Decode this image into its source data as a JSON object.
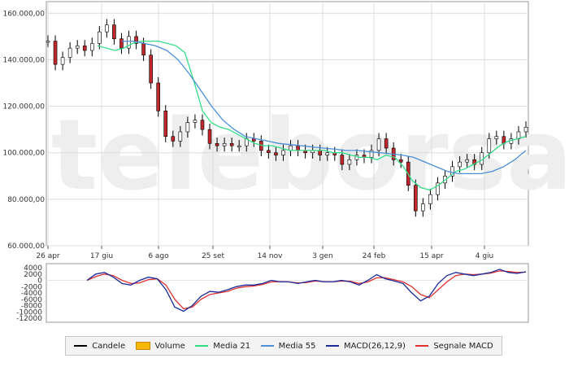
{
  "chart_data": [
    {
      "type": "candlestick-line",
      "watermark": "teleborsa",
      "x_ticks": [
        "26 apr",
        "17 giu",
        "6 ago",
        "25 set",
        "14 nov",
        "3 gen",
        "24 feb",
        "15 apr",
        "4 giu"
      ],
      "y_ticks": [
        "160.000,00",
        "140.000,00",
        "120.000,00",
        "100.000,00",
        "80.000,00",
        "60.000,00"
      ],
      "y_tick_values": [
        160000,
        140000,
        120000,
        100000,
        80000,
        60000
      ],
      "ylim": [
        60000,
        165000
      ],
      "grid": true,
      "series": [
        {
          "name": "Candele",
          "values": [
            148000,
            138000,
            141000,
            145000,
            146000,
            144000,
            147000,
            152000,
            155000,
            149000,
            145000,
            150000,
            147000,
            142000,
            130000,
            118000,
            107000,
            105000,
            109000,
            113000,
            114000,
            110000,
            104000,
            103000,
            104000,
            103000,
            103000,
            106000,
            105000,
            101000,
            100000,
            99000,
            101000,
            103000,
            101000,
            100000,
            101000,
            99000,
            100000,
            99000,
            95000,
            97000,
            99000,
            98000,
            101000,
            106000,
            102000,
            97000,
            96000,
            86000,
            75000,
            78000,
            82000,
            87000,
            90000,
            94000,
            96000,
            97000,
            95000,
            100000,
            106000,
            107000,
            104000,
            106000,
            109000,
            111000
          ]
        },
        {
          "name": "Media 21",
          "values": [
            146000,
            145000,
            144000,
            145000,
            147000,
            148000,
            148000,
            148000,
            147000,
            146000,
            143000,
            131000,
            118000,
            113000,
            111000,
            110000,
            108000,
            106000,
            104000,
            103000,
            103000,
            102000,
            101000,
            101000,
            101000,
            101000,
            101000,
            100000,
            100000,
            99000,
            98000,
            98000,
            97000,
            99000,
            98000,
            94000,
            88000,
            85000,
            84000,
            86000,
            89000,
            92000,
            93000,
            95000,
            97000,
            100000,
            103000,
            105000,
            106000,
            107000
          ]
        },
        {
          "name": "Media 55",
          "values": [
            148000,
            148000,
            147000,
            146000,
            144000,
            140000,
            134000,
            127000,
            120000,
            114000,
            110000,
            107000,
            106000,
            105000,
            104000,
            103500,
            103000,
            102500,
            102000,
            101500,
            101000,
            101000,
            100500,
            100000,
            99500,
            99000,
            98000,
            96000,
            94000,
            92000,
            91000,
            91000,
            91000,
            92000,
            94000,
            97000,
            101000
          ]
        }
      ],
      "colors": {
        "Candele": "#000000",
        "Media 21": "#33dd88",
        "Media 55": "#4a8fd8"
      }
    },
    {
      "type": "line",
      "y_ticks": [
        "4000",
        "2000",
        "0",
        "-2000",
        "-4000",
        "-6000",
        "-8000",
        "-10000",
        "-12000"
      ],
      "y_tick_values": [
        4000,
        2000,
        0,
        -2000,
        -4000,
        -6000,
        -8000,
        -10000,
        -12000
      ],
      "ylim": [
        -12000,
        4000
      ],
      "series": [
        {
          "name": "MACD(26,12,9)",
          "values": [
            0,
            2000,
            2500,
            1000,
            -1000,
            -1500,
            0,
            1000,
            500,
            -3000,
            -8500,
            -9800,
            -8000,
            -5000,
            -3500,
            -3800,
            -3000,
            -2000,
            -1500,
            -1500,
            -1000,
            0,
            -500,
            -500,
            -1000,
            -500,
            0,
            -500,
            -500,
            0,
            -500,
            -1500,
            0,
            1800,
            500,
            -200,
            -1000,
            -4000,
            -6500,
            -5000,
            -1000,
            1500,
            2500,
            2000,
            1500,
            2000,
            2500,
            3500,
            2500,
            2200,
            2700
          ]
        },
        {
          "name": "Segnale MACD",
          "values": [
            0,
            1200,
            2000,
            1500,
            0,
            -1000,
            -800,
            200,
            500,
            -1500,
            -6000,
            -9000,
            -8500,
            -6000,
            -4500,
            -4000,
            -3500,
            -2500,
            -2000,
            -1800,
            -1300,
            -500,
            -400,
            -500,
            -800,
            -700,
            -200,
            -400,
            -500,
            -200,
            -300,
            -1000,
            -500,
            800,
            800,
            200,
            -500,
            -2000,
            -4500,
            -5500,
            -3000,
            -500,
            1500,
            2000,
            1800,
            2000,
            2300,
            3000,
            2800,
            2500,
            2600
          ]
        }
      ],
      "colors": {
        "MACD(26,12,9)": "#1a2a9a",
        "Segnale MACD": "#e03030"
      }
    }
  ],
  "legend": [
    {
      "label": "Candele",
      "color": "#000000",
      "kind": "line"
    },
    {
      "label": "Volume",
      "color": "#f7b500",
      "kind": "box"
    },
    {
      "label": "Media 21",
      "color": "#33dd88",
      "kind": "line"
    },
    {
      "label": "Media 55",
      "color": "#4a8fd8",
      "kind": "line"
    },
    {
      "label": "MACD(26,12,9)",
      "color": "#1a2a9a",
      "kind": "line"
    },
    {
      "label": "Segnale MACD",
      "color": "#e03030",
      "kind": "line"
    }
  ]
}
